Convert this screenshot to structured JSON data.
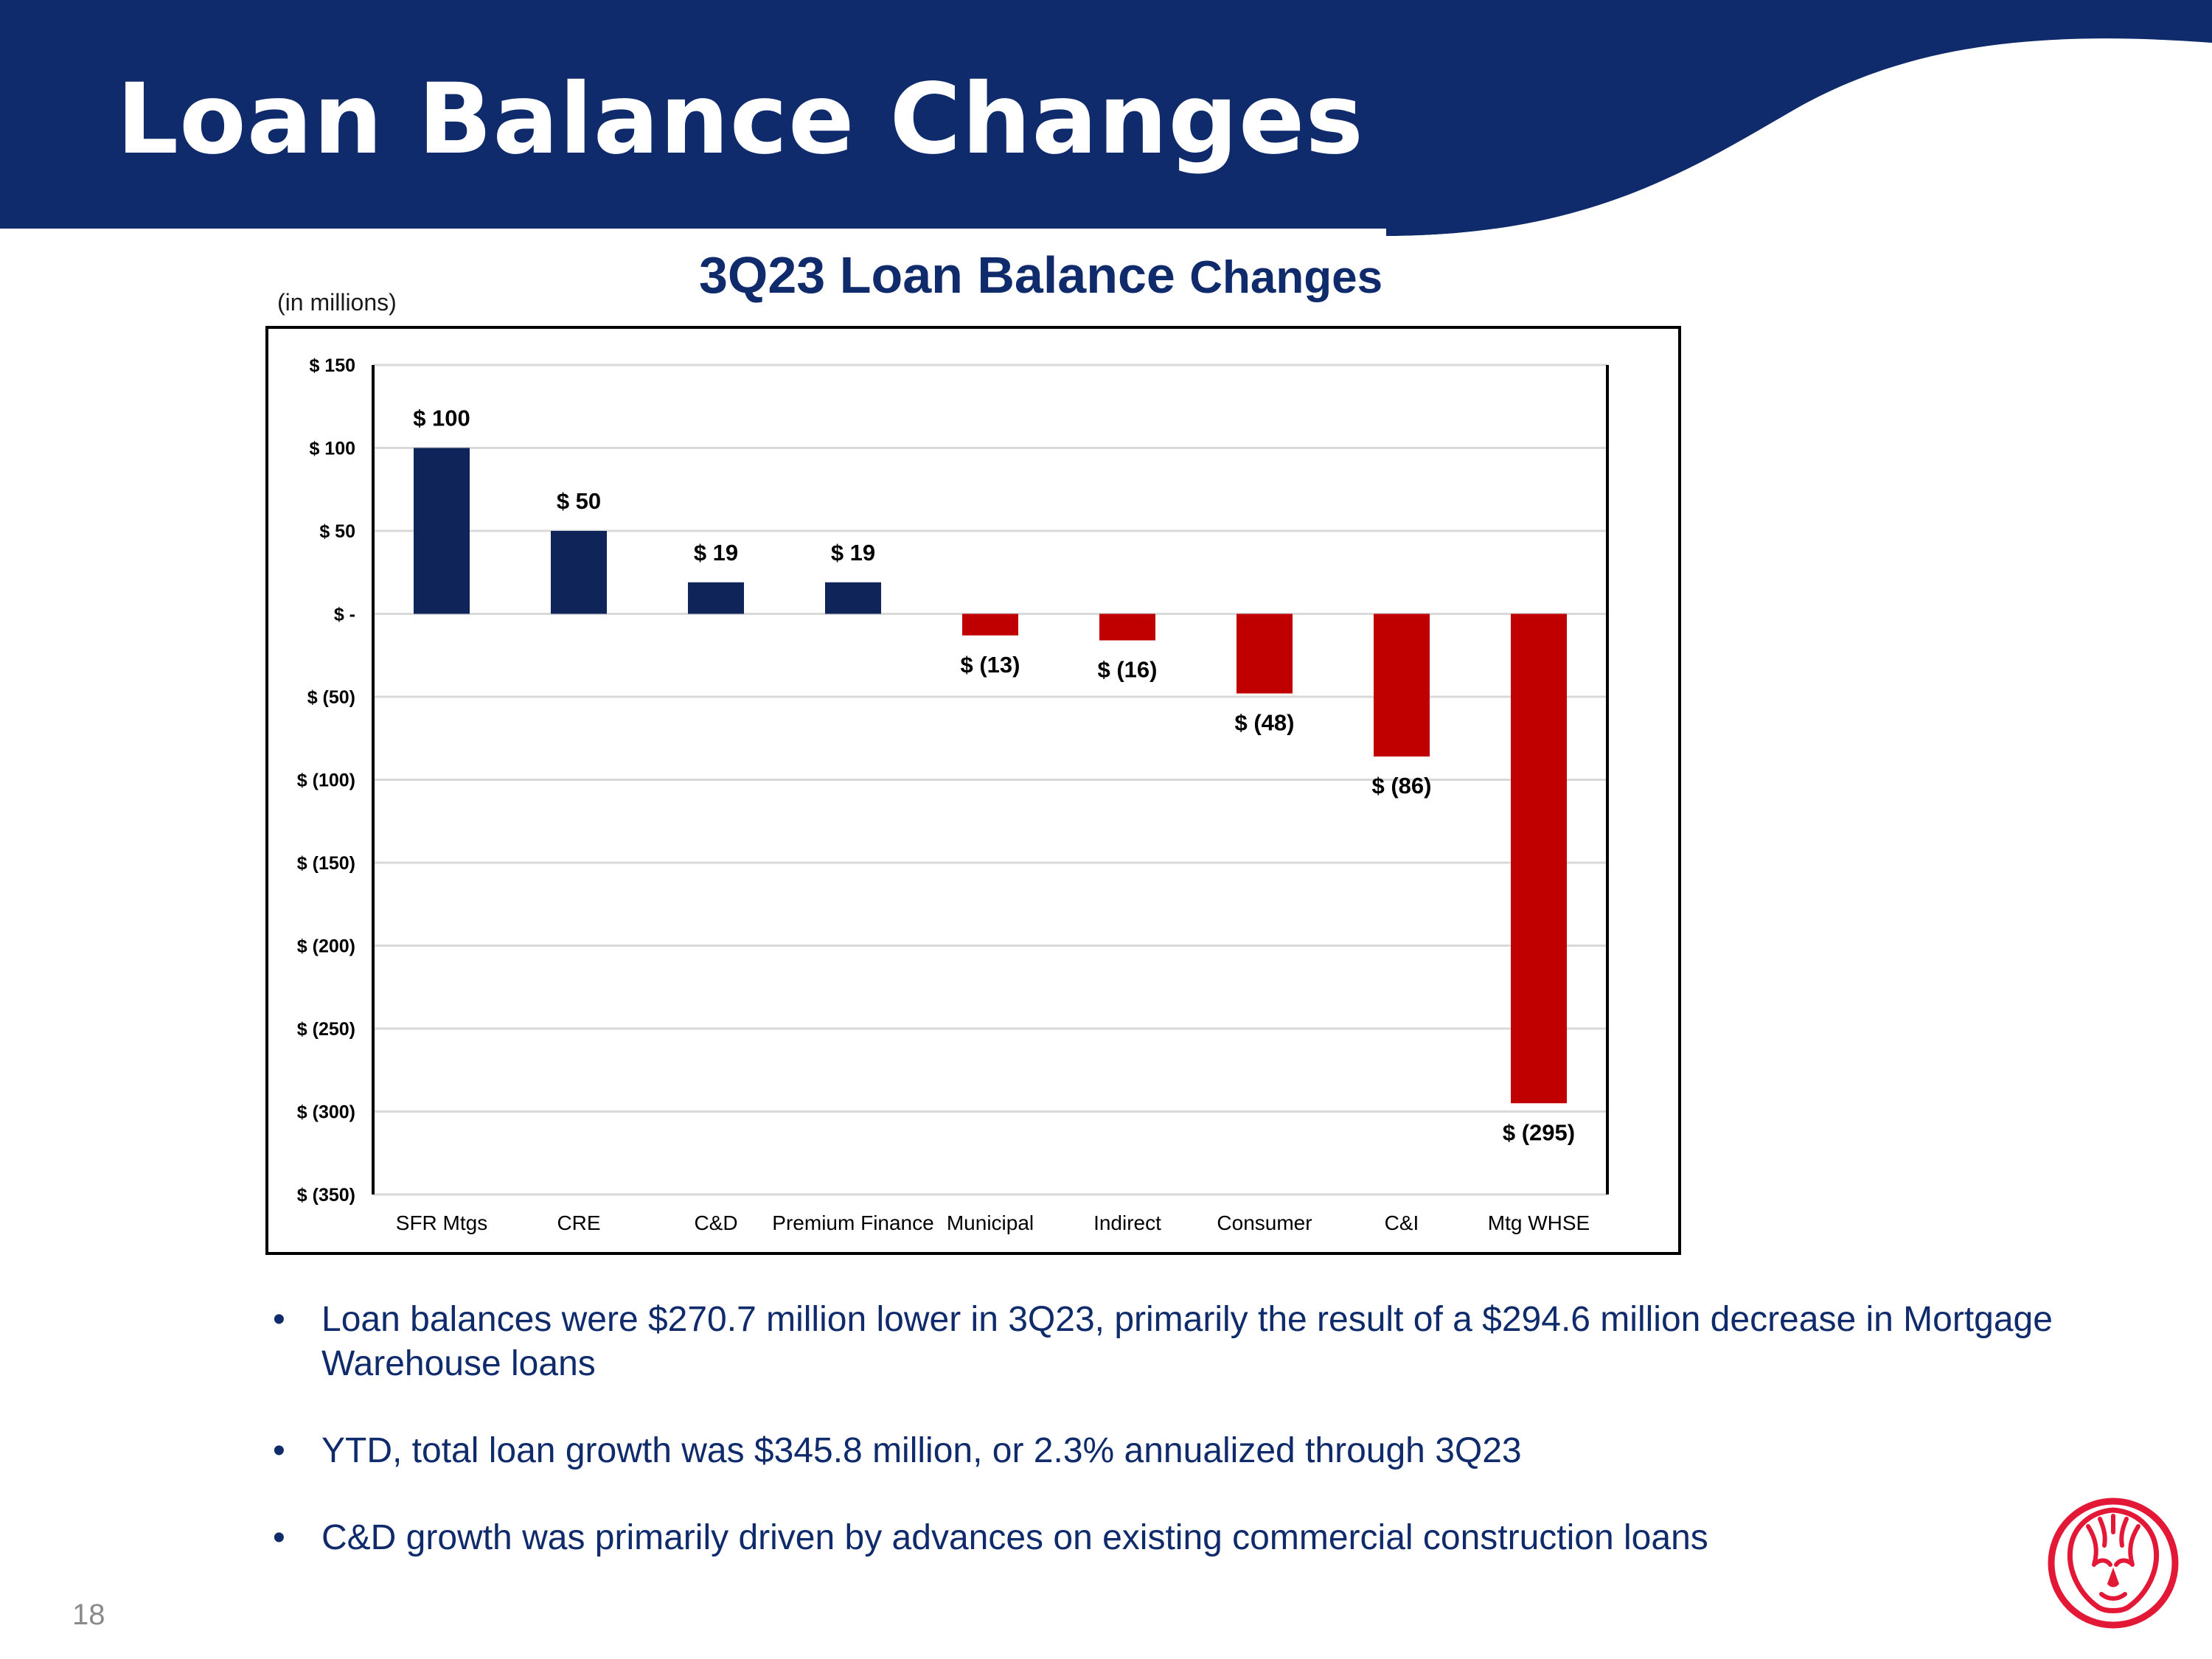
{
  "slide": {
    "title": "Loan Balance Changes",
    "page_number": "18"
  },
  "colors": {
    "banner_navy": "#0F2B6B",
    "positive_bar": "#0F2459",
    "negative_bar": "#C00000",
    "logo_red": "#E31837"
  },
  "chart": {
    "title_main": "3Q23 Loan Balance ",
    "title_tail": "Changes",
    "units_note": "(in millions)"
  },
  "chart_data": {
    "type": "bar",
    "title": "3Q23 Loan Balance Changes",
    "xlabel": "",
    "ylabel": "",
    "categories": [
      "SFR Mtgs",
      "CRE",
      "C&D",
      "Premium Finance",
      "Municipal",
      "Indirect",
      "Consumer",
      "C&I",
      "Mtg WHSE"
    ],
    "values": [
      100,
      50,
      19,
      19,
      -13,
      -16,
      -48,
      -86,
      -295
    ],
    "data_labels": [
      "$ 100",
      "$ 50",
      "$ 19",
      "$ 19",
      "$ (13)",
      "$ (16)",
      "$ (48)",
      "$ (86)",
      "$ (295)"
    ],
    "ylim": [
      -350,
      150
    ],
    "yticks": [
      150,
      100,
      50,
      0,
      -50,
      -100,
      -150,
      -200,
      -250,
      -300,
      -350
    ],
    "ytick_labels": [
      "$ 150",
      "$ 100",
      "$ 50",
      "$ -",
      "$ (50)",
      "$ (100)",
      "$ (150)",
      "$ (200)",
      "$ (250)",
      "$ (300)",
      "$ (350)"
    ],
    "grid": true,
    "legend": "none"
  },
  "bullets": [
    "Loan balances were $270.7 million lower in 3Q23, primarily the result of a $294.6 million decrease in Mortgage Warehouse loans",
    "YTD, total loan growth was $345.8 million, or 2.3% annualized through 3Q23",
    "C&D growth was primarily driven by advances on existing commercial construction loans"
  ],
  "bullet_symbol": "•",
  "logo": {
    "icon": "lion-head-icon"
  }
}
